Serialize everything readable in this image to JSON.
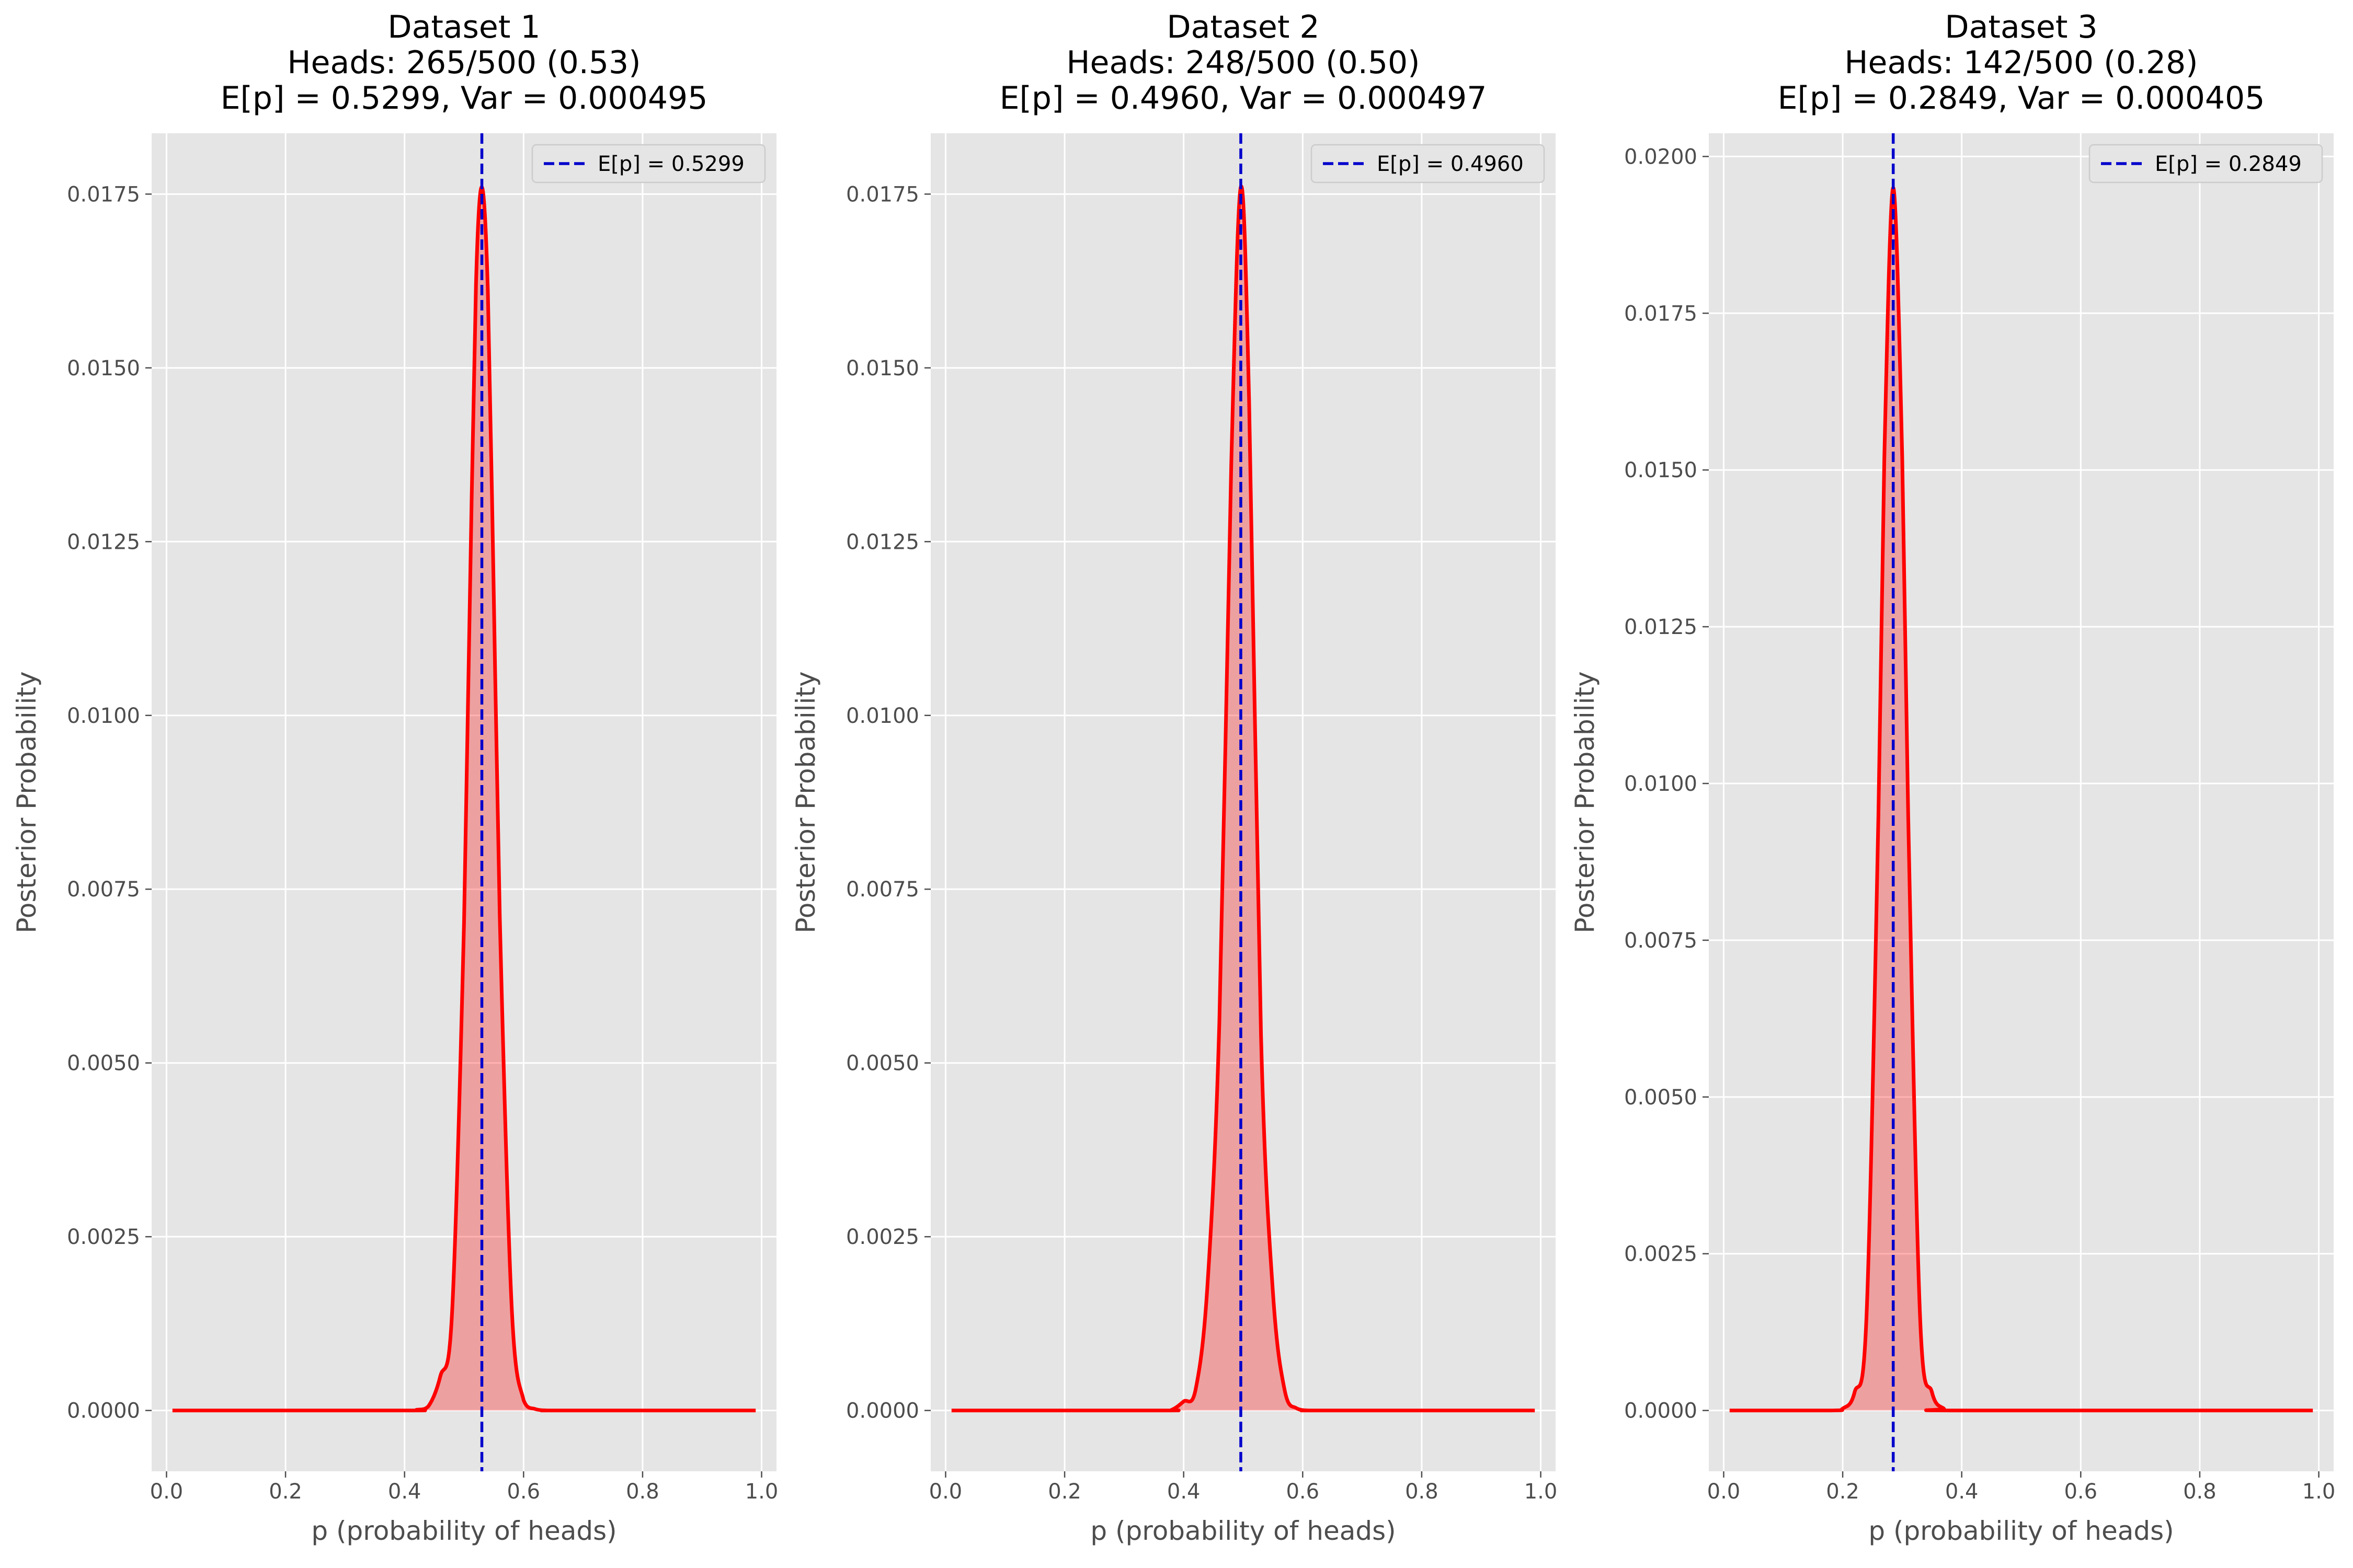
{
  "chart_data": [
    {
      "type": "area",
      "title_lines": [
        "Dataset 1",
        "Heads: 265/500 (0.53)",
        "E[p] = 0.5299, Var = 0.000495"
      ],
      "xlabel": "p (probability of heads)",
      "ylabel": "Posterior Probability",
      "xlim": [
        -0.025,
        1.025
      ],
      "ylim": [
        -0.000875,
        0.018375
      ],
      "xticks": [
        0.0,
        0.2,
        0.4,
        0.6,
        0.8,
        1.0
      ],
      "xtick_labels": [
        "0.0",
        "0.2",
        "0.4",
        "0.6",
        "0.8",
        "1.0"
      ],
      "yticks": [
        0.0,
        0.0025,
        0.005,
        0.0075,
        0.01,
        0.0125,
        0.015,
        0.0175
      ],
      "ytick_labels": [
        "0.0000",
        "0.0025",
        "0.0050",
        "0.0075",
        "0.0100",
        "0.0125",
        "0.0150",
        "0.0175"
      ],
      "grid": true,
      "legend_position": "top-right",
      "mean_line": {
        "label": "E[p] = 0.5299",
        "x": 0.5299
      },
      "series": [
        {
          "x": [
            0.01,
            0.4,
            0.42,
            0.44,
            0.46,
            0.48,
            0.5,
            0.51,
            0.52,
            0.5299,
            0.54,
            0.55,
            0.56,
            0.58,
            0.6,
            0.62,
            0.64,
            0.66,
            0.99
          ],
          "y": [
            0.0,
            0.0,
            1e-05,
            6e-05,
            0.00049,
            0.00143,
            0.00704,
            0.0118,
            0.0162,
            0.0176,
            0.0161,
            0.0117,
            0.0071,
            0.0015,
            0.00015,
            2e-05,
            0.0,
            0.0,
            0.0
          ]
        }
      ]
    },
    {
      "type": "area",
      "title_lines": [
        "Dataset 2",
        "Heads: 248/500 (0.50)",
        "E[p] = 0.4960, Var = 0.000497"
      ],
      "xlabel": "p (probability of heads)",
      "ylabel": "Posterior Probability",
      "xlim": [
        -0.025,
        1.025
      ],
      "ylim": [
        -0.000875,
        0.018375
      ],
      "xticks": [
        0.0,
        0.2,
        0.4,
        0.6,
        0.8,
        1.0
      ],
      "xtick_labels": [
        "0.0",
        "0.2",
        "0.4",
        "0.6",
        "0.8",
        "1.0"
      ],
      "yticks": [
        0.0,
        0.0025,
        0.005,
        0.0075,
        0.01,
        0.0125,
        0.015,
        0.0175
      ],
      "ytick_labels": [
        "0.0000",
        "0.0025",
        "0.0050",
        "0.0075",
        "0.0100",
        "0.0125",
        "0.0150",
        "0.0175"
      ],
      "grid": true,
      "legend_position": "top-right",
      "mean_line": {
        "label": "E[p] = 0.4960",
        "x": 0.496
      },
      "series": [
        {
          "x": [
            0.01,
            0.36,
            0.38,
            0.4,
            0.42,
            0.44,
            0.46,
            0.48,
            0.496,
            0.51,
            0.53,
            0.55,
            0.57,
            0.59,
            0.61,
            0.63,
            0.99
          ],
          "y": [
            0.0,
            0.0,
            1e-05,
            0.00013,
            0.0003,
            0.0018,
            0.0056,
            0.0136,
            0.0176,
            0.0145,
            0.0054,
            0.0017,
            0.00028,
            3e-05,
            0.0,
            0.0,
            0.0
          ]
        }
      ]
    },
    {
      "type": "area",
      "title_lines": [
        "Dataset 3",
        "Heads: 142/500 (0.28)",
        "E[p] = 0.2849, Var = 0.000405"
      ],
      "xlabel": "p (probability of heads)",
      "ylabel": "Posterior Probability",
      "xlim": [
        -0.025,
        1.025
      ],
      "ylim": [
        -0.00097,
        0.02037
      ],
      "xticks": [
        0.0,
        0.2,
        0.4,
        0.6,
        0.8,
        1.0
      ],
      "xtick_labels": [
        "0.0",
        "0.2",
        "0.4",
        "0.6",
        "0.8",
        "1.0"
      ],
      "yticks": [
        0.0,
        0.0025,
        0.005,
        0.0075,
        0.01,
        0.0125,
        0.015,
        0.0175,
        0.02
      ],
      "ytick_labels": [
        "0.0000",
        "0.0025",
        "0.0050",
        "0.0075",
        "0.0100",
        "0.0125",
        "0.0150",
        "0.0175",
        "0.0200"
      ],
      "grid": true,
      "legend_position": "top-right",
      "mean_line": {
        "label": "E[p] = 0.2849",
        "x": 0.2849
      },
      "series": [
        {
          "x": [
            0.01,
            0.18,
            0.2,
            0.22,
            0.24,
            0.26,
            0.27,
            0.2849,
            0.3,
            0.31,
            0.33,
            0.35,
            0.37,
            0.39,
            0.99
          ],
          "y": [
            0.0,
            0.0,
            3e-05,
            0.00029,
            0.0015,
            0.0095,
            0.0152,
            0.0195,
            0.0152,
            0.0095,
            0.0015,
            0.00029,
            3e-05,
            0.0,
            0.0
          ]
        }
      ]
    }
  ]
}
